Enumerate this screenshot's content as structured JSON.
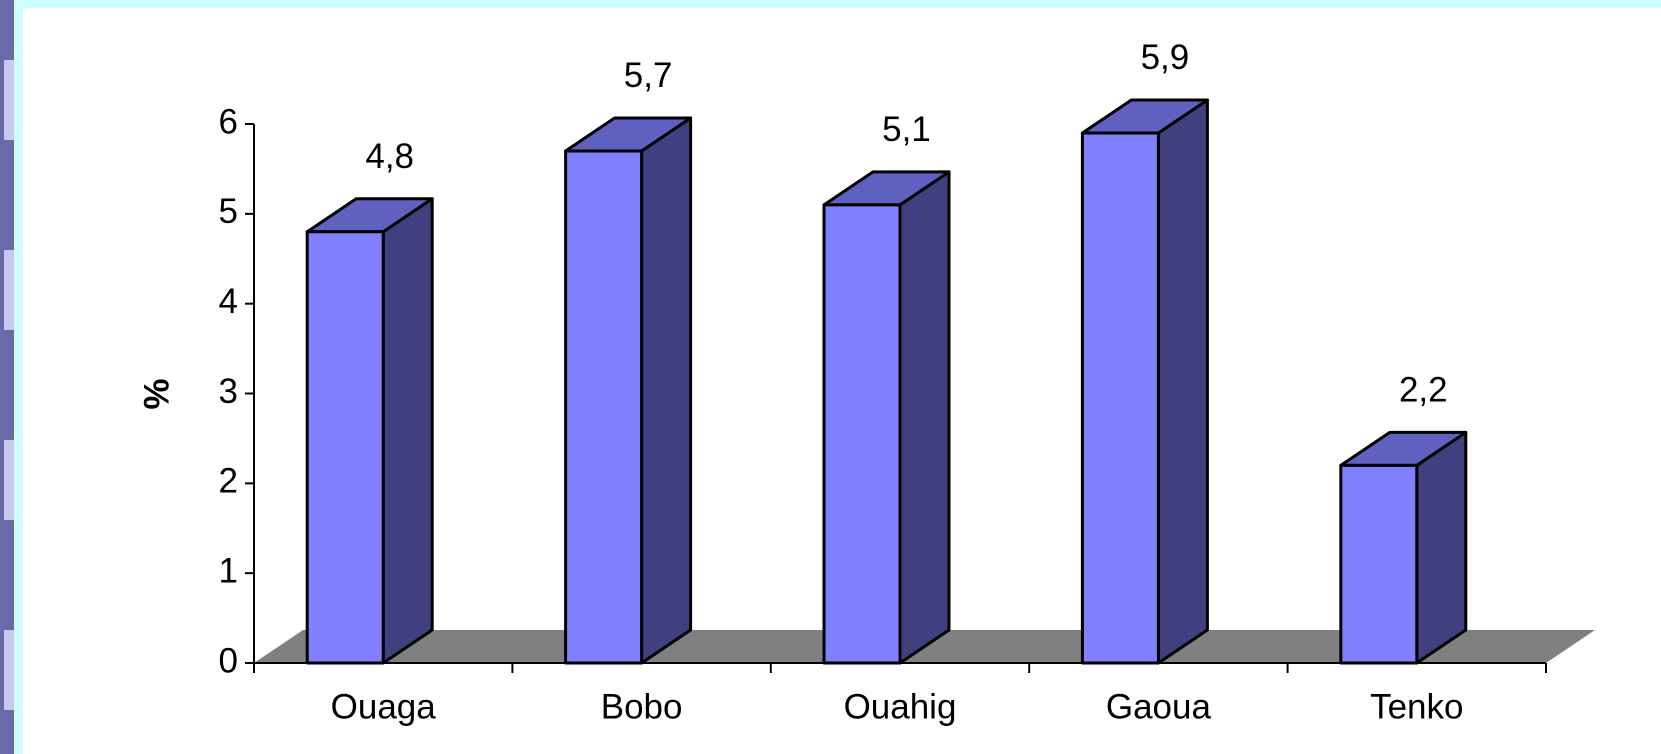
{
  "chart_data": {
    "type": "bar3d",
    "y_label": "%",
    "categories": [
      "Ouaga",
      "Bobo",
      "Ouahig",
      "Gaoua",
      "Tenko"
    ],
    "values": [
      4.8,
      5.7,
      5.1,
      5.9,
      2.2
    ],
    "value_labels": [
      "4,8",
      "5,7",
      "5,1",
      "5,9",
      "2,2"
    ],
    "color": "#8080ff",
    "ylim": [
      0,
      6
    ],
    "yticks": [
      0,
      1,
      2,
      3,
      4,
      5,
      6
    ]
  }
}
